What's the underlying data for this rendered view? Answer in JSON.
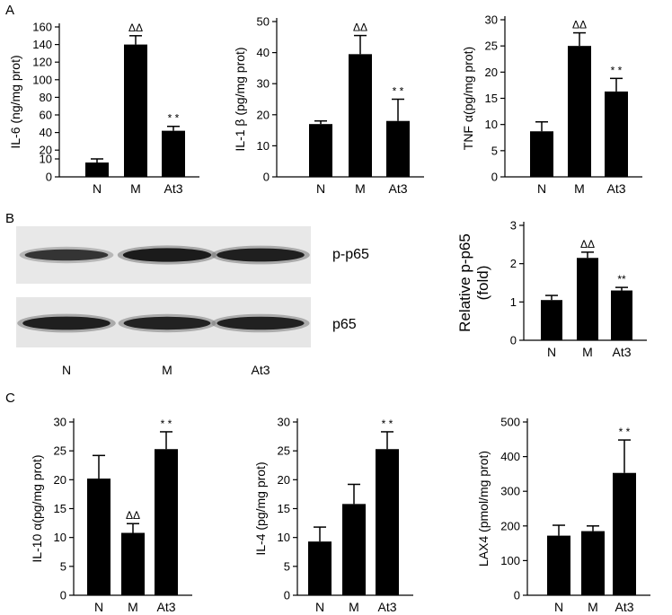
{
  "panels": {
    "A": "A",
    "B": "B",
    "C": "C"
  },
  "blot": {
    "rows": [
      {
        "label": "p-p65",
        "intensity": [
          0.55,
          0.9,
          0.85
        ]
      },
      {
        "label": "p65",
        "intensity": [
          0.85,
          0.8,
          0.82
        ]
      }
    ],
    "lanes": [
      "N",
      "M",
      "At3"
    ]
  },
  "chart_data": [
    {
      "type": "bar",
      "panel": "A",
      "categories": [
        "N",
        "M",
        "At3"
      ],
      "values": [
        8,
        140,
        42
      ],
      "errors": [
        2,
        10,
        5
      ],
      "annotations": [
        "",
        "ΔΔ",
        "* *"
      ],
      "ylabel": "IL-6 (ng/mg prot)",
      "ylim": [
        0,
        160
      ],
      "yticks": [
        0,
        10,
        20,
        40,
        60,
        80,
        100,
        120,
        140,
        160
      ],
      "scale": "broken"
    },
    {
      "type": "bar",
      "panel": "A",
      "categories": [
        "N",
        "M",
        "At3"
      ],
      "values": [
        17,
        39.5,
        18
      ],
      "errors": [
        1,
        6,
        7
      ],
      "annotations": [
        "",
        "ΔΔ",
        "* *"
      ],
      "ylabel": "IL-1 β (pg/mg prot)",
      "ylim": [
        0,
        50
      ],
      "yticks": [
        0,
        10,
        20,
        30,
        40,
        50
      ]
    },
    {
      "type": "bar",
      "panel": "A",
      "categories": [
        "N",
        "M",
        "At3"
      ],
      "values": [
        8.7,
        25,
        16.3
      ],
      "errors": [
        1.8,
        2.5,
        2.5
      ],
      "annotations": [
        "",
        "ΔΔ",
        "* *"
      ],
      "ylabel": "TNF α(pg/mg prot)",
      "ylim": [
        0,
        30
      ],
      "yticks": [
        0,
        5,
        10,
        15,
        20,
        25,
        30
      ]
    },
    {
      "type": "bar",
      "panel": "B",
      "categories": [
        "N",
        "M",
        "At3"
      ],
      "values": [
        1.05,
        2.15,
        1.3
      ],
      "errors": [
        0.12,
        0.15,
        0.08
      ],
      "annotations": [
        "",
        "ΔΔ",
        "**"
      ],
      "ylabel": "Relative p-p65 (fold)",
      "ylim": [
        0,
        3
      ],
      "yticks": [
        0,
        1,
        2,
        3
      ]
    },
    {
      "type": "bar",
      "panel": "C",
      "categories": [
        "N",
        "M",
        "At3"
      ],
      "values": [
        20.2,
        10.8,
        25.3
      ],
      "errors": [
        4,
        1.6,
        3
      ],
      "annotations": [
        "",
        "ΔΔ",
        "* *"
      ],
      "ylabel": "IL-10 α(pg/mg prot)",
      "ylim": [
        0,
        30
      ],
      "yticks": [
        0,
        5,
        10,
        15,
        20,
        25,
        30
      ]
    },
    {
      "type": "bar",
      "panel": "C",
      "categories": [
        "N",
        "M",
        "At3"
      ],
      "values": [
        9.3,
        15.8,
        25.3
      ],
      "errors": [
        2.5,
        3.4,
        3
      ],
      "annotations": [
        "",
        "",
        "* *"
      ],
      "ylabel": "IL-4 (pg/mg prot)",
      "ylim": [
        0,
        30
      ],
      "yticks": [
        0,
        5,
        10,
        15,
        20,
        25,
        30
      ]
    },
    {
      "type": "bar",
      "panel": "C",
      "categories": [
        "N",
        "M",
        "At3"
      ],
      "values": [
        172,
        185,
        353
      ],
      "errors": [
        30,
        15,
        95
      ],
      "annotations": [
        "",
        "",
        "* *"
      ],
      "ylabel": "LAX4 (pmol/mg prot)",
      "ylim": [
        0,
        500
      ],
      "yticks": [
        0,
        100,
        200,
        300,
        400,
        500
      ]
    }
  ]
}
